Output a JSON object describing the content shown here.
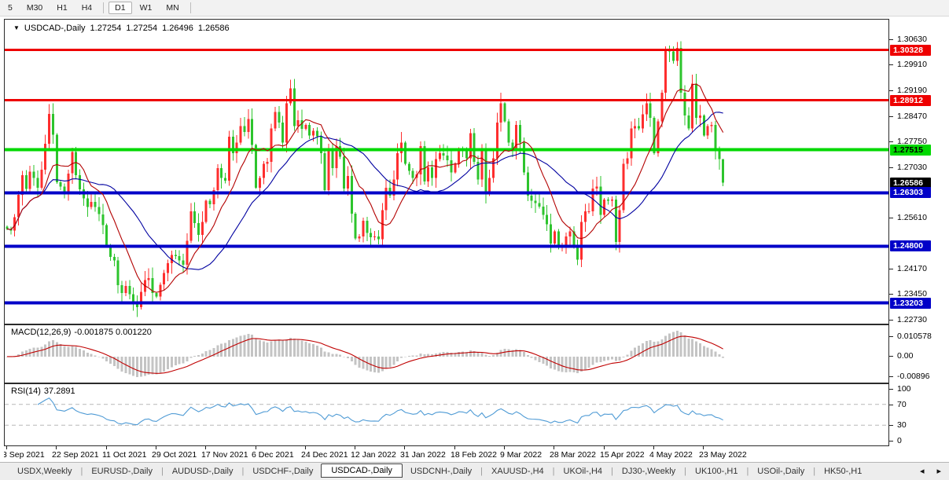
{
  "toolbar": {
    "periods": [
      "5",
      "M30",
      "H1",
      "H4",
      "D1",
      "W1",
      "MN"
    ],
    "active_period": "D1",
    "separators_after": [
      3,
      6
    ]
  },
  "chart": {
    "symbol_title": "USDCAD-,Daily",
    "dropdown_icon": "▼",
    "ohlc": {
      "open": "1.27254",
      "high": "1.27254",
      "low": "1.26496",
      "close": "1.26586"
    }
  },
  "price_axis": {
    "ticks": [
      {
        "label": "1.30630",
        "value": 1.3063
      },
      {
        "label": "1.29910",
        "value": 1.2991
      },
      {
        "label": "1.29190",
        "value": 1.2919
      },
      {
        "label": "1.28470",
        "value": 1.2847
      },
      {
        "label": "1.27750",
        "value": 1.2775
      },
      {
        "label": "1.27030",
        "value": 1.2703
      },
      {
        "label": "1.25610",
        "value": 1.2561
      },
      {
        "label": "1.24170",
        "value": 1.2417
      },
      {
        "label": "1.23450",
        "value": 1.2345
      },
      {
        "label": "1.22730",
        "value": 1.2273
      }
    ],
    "tags": [
      {
        "label": "1.30328",
        "value": 1.30328,
        "bg": "#ee0000",
        "fg": "#ffffff"
      },
      {
        "label": "1.28912",
        "value": 1.28912,
        "bg": "#ee0000",
        "fg": "#ffffff"
      },
      {
        "label": "1.27515",
        "value": 1.27515,
        "bg": "#00d800",
        "fg": "#000000"
      },
      {
        "label": "1.26586",
        "value": 1.26586,
        "bg": "#000000",
        "fg": "#ffffff"
      },
      {
        "label": "1.26303",
        "value": 1.26303,
        "bg": "#0000c8",
        "fg": "#ffffff"
      },
      {
        "label": "1.24800",
        "value": 1.248,
        "bg": "#0000c8",
        "fg": "#ffffff"
      },
      {
        "label": "1.23203",
        "value": 1.23203,
        "bg": "#0000c8",
        "fg": "#ffffff"
      }
    ]
  },
  "hlines": [
    {
      "value": 1.30328,
      "color": "#ee0000",
      "width": 3
    },
    {
      "value": 1.28912,
      "color": "#ee0000",
      "width": 3
    },
    {
      "value": 1.27515,
      "color": "#00d800",
      "width": 4
    },
    {
      "value": 1.26303,
      "color": "#0000c8",
      "width": 4
    },
    {
      "value": 1.248,
      "color": "#0000c8",
      "width": 4
    },
    {
      "value": 1.23203,
      "color": "#0000c8",
      "width": 4
    }
  ],
  "chart_data": {
    "type": "candlestick",
    "symbol": "USDCAD-",
    "timeframe": "Daily",
    "ylim": [
      1.2262,
      1.3118
    ],
    "x_tick_labels": [
      "3 Sep 2021",
      "22 Sep 2021",
      "11 Oct 2021",
      "29 Oct 2021",
      "17 Nov 2021",
      "6 Dec 2021",
      "24 Dec 2021",
      "12 Jan 2022",
      "31 Jan 2022",
      "18 Feb 2022",
      "9 Mar 2022",
      "28 Mar 2022",
      "15 Apr 2022",
      "4 May 2022",
      "23 May 2022"
    ],
    "x_tick_interval_candles": 13,
    "up_color": "#fe2e2e",
    "down_color": "#2dc42d",
    "ma_fast": {
      "period": 10,
      "color": "#b30000"
    },
    "ma_slow": {
      "period": 25,
      "color": "#0000a0"
    },
    "last_ohlc": [
      1.27254,
      1.27254,
      1.26496,
      1.26586
    ],
    "closes": [
      1.2529,
      1.2524,
      1.2562,
      1.2625,
      1.268,
      1.2641,
      1.269,
      1.2672,
      1.2645,
      1.2695,
      1.2768,
      1.2853,
      1.2794,
      1.266,
      1.2648,
      1.2632,
      1.2685,
      1.2745,
      1.268,
      1.264,
      1.2615,
      1.259,
      1.2605,
      1.259,
      1.257,
      1.254,
      1.248,
      1.245,
      1.244,
      1.237,
      1.2348,
      1.2368,
      1.2345,
      1.232,
      1.2308,
      1.2352,
      1.2385,
      1.239,
      1.2348,
      1.2338,
      1.2372,
      1.2405,
      1.2432,
      1.2455,
      1.2452,
      1.244,
      1.2428,
      1.2495,
      1.2578,
      1.2545,
      1.2512,
      1.2548,
      1.2608,
      1.2598,
      1.2638,
      1.27,
      1.2672,
      1.2665,
      1.2788,
      1.2742,
      1.2772,
      1.2818,
      1.2802,
      1.2838,
      1.2765,
      1.2645,
      1.2672,
      1.2712,
      1.2718,
      1.2812,
      1.2858,
      1.2828,
      1.2772,
      1.2882,
      1.2925,
      1.2818,
      1.2835,
      1.281,
      1.2822,
      1.2792,
      1.2805,
      1.279,
      1.2742,
      1.2638,
      1.2752,
      1.27,
      1.2762,
      1.2732,
      1.2642,
      1.2678,
      1.2572,
      1.2502,
      1.2508,
      1.2552,
      1.2518,
      1.2505,
      1.2508,
      1.25,
      1.2582,
      1.2645,
      1.2622,
      1.2668,
      1.2742,
      1.2772,
      1.2712,
      1.2692,
      1.2672,
      1.2682,
      1.2762,
      1.2662,
      1.2702,
      1.2672,
      1.2725,
      1.2742,
      1.2735,
      1.2722,
      1.2688,
      1.2712,
      1.2752,
      1.2748,
      1.2728,
      1.2798,
      1.2718,
      1.2668,
      1.2748,
      1.2628,
      1.2672,
      1.2728,
      1.2828,
      1.2882,
      1.2832,
      1.2772,
      1.2748,
      1.2822,
      1.2772,
      1.2688,
      1.2622,
      1.2608,
      1.2602,
      1.2592,
      1.2568,
      1.2542,
      1.2488,
      1.2522,
      1.2482,
      1.2482,
      1.2508,
      1.2522,
      1.2482,
      1.2442,
      1.2548,
      1.2578,
      1.2578,
      1.2642,
      1.2648,
      1.2568,
      1.2612,
      1.2608,
      1.2612,
      1.2492,
      1.2582,
      1.2712,
      1.2728,
      1.2812,
      1.2818,
      1.2812,
      1.2852,
      1.2882,
      1.2842,
      1.2742,
      1.2832,
      1.2912,
      1.3032,
      1.3028,
      1.3002,
      1.3038,
      1.2912,
      1.2848,
      1.2812,
      1.2938,
      1.2842,
      1.2848,
      1.2792,
      1.2818,
      1.2822,
      1.2748,
      1.2725,
      1.2659
    ]
  },
  "macd_panel": {
    "label_name": "MACD(12,26,9)",
    "label_values": "-0.001875 0.001220",
    "axis_labels": [
      "0.010578",
      "0.00",
      "-0.00896"
    ],
    "histogram_color": "#c4c4c4",
    "signal_color": "#c00000"
  },
  "rsi_panel": {
    "label_name": "RSI(14)",
    "label_values": "37.2891",
    "axis_labels": [
      {
        "label": "100",
        "value": 100
      },
      {
        "label": "70",
        "value": 70
      },
      {
        "label": "30",
        "value": 30
      },
      {
        "label": "0",
        "value": 0
      }
    ],
    "levels": [
      70,
      30
    ],
    "line_color": "#4f9bd5",
    "level_color": "#b8b8b8"
  },
  "tabs": {
    "items": [
      "USDX,Weekly",
      "EURUSD-,Daily",
      "AUDUSD-,Daily",
      "USDCHF-,Daily",
      "USDCAD-,Daily",
      "USDCNH-,Daily",
      "XAUUSD-,H4",
      "UKOil-,H4",
      "DJ30-,Weekly",
      "UK100-,H1",
      "USOil-,Daily",
      "HK50-,H1"
    ],
    "active_index": 4,
    "separator": "|",
    "scroll_left_icon": "◂",
    "scroll_right_icon": "▸"
  }
}
